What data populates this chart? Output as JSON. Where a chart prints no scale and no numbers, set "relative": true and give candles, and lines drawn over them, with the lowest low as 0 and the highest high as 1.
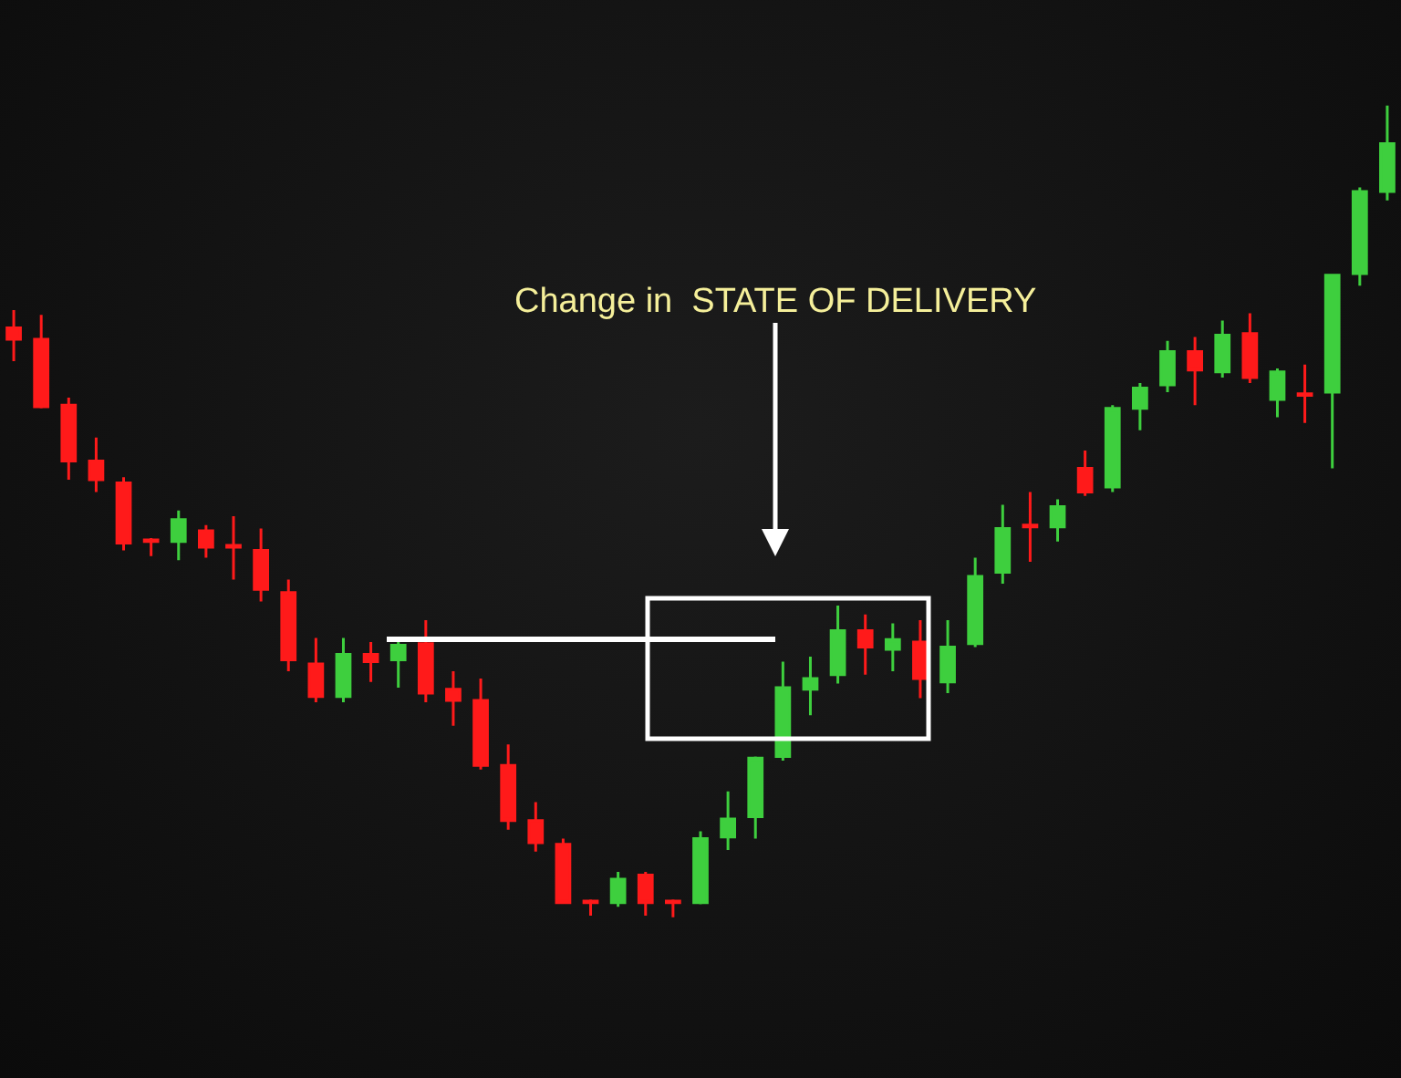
{
  "chart_data": {
    "type": "candlestick",
    "relative": true,
    "categories": [
      null,
      null,
      null,
      null,
      null,
      null,
      null,
      null,
      null,
      null,
      null,
      null,
      null,
      null,
      null,
      null,
      null,
      null,
      null,
      null,
      null,
      null,
      null,
      null,
      null,
      null,
      null,
      null,
      null,
      null,
      null,
      null,
      null,
      null,
      null,
      null,
      null,
      null,
      null,
      null,
      null,
      null,
      null,
      null,
      null,
      null,
      null,
      null,
      null,
      null,
      null
    ],
    "ohlc": [
      [
        0.726,
        0.748,
        0.685,
        0.712
      ],
      [
        0.712,
        0.742,
        0.627,
        0.629
      ],
      [
        0.631,
        0.64,
        0.539,
        0.562
      ],
      [
        0.562,
        0.591,
        0.524,
        0.539
      ],
      [
        0.535,
        0.542,
        0.452,
        0.461
      ],
      [
        0.465,
        0.467,
        0.445,
        0.463
      ],
      [
        0.463,
        0.501,
        0.44,
        0.49
      ],
      [
        0.476,
        0.483,
        0.443,
        0.456
      ],
      [
        0.458,
        0.494,
        0.416,
        0.456
      ],
      [
        0.452,
        0.479,
        0.389,
        0.404
      ],
      [
        0.4,
        0.416,
        0.303,
        0.317
      ],
      [
        0.312,
        0.344,
        0.265,
        0.272
      ],
      [
        0.272,
        0.344,
        0.265,
        0.324
      ],
      [
        0.324,
        0.339,
        0.29,
        0.315
      ],
      [
        0.317,
        0.344,
        0.283,
        0.335
      ],
      [
        0.337,
        0.366,
        0.265,
        0.276
      ],
      [
        0.281,
        0.303,
        0.236,
        0.267
      ],
      [
        0.267,
        0.294,
        0.182,
        0.187
      ],
      [
        0.187,
        0.213,
        0.108,
        0.119
      ],
      [
        0.119,
        0.142,
        0.081,
        0.092
      ],
      [
        0.09,
        0.097,
        0.018,
        0.018
      ],
      [
        0.02,
        0.022,
        0.002,
        0.018
      ],
      [
        0.018,
        0.056,
        0.013,
        0.047
      ],
      [
        0.052,
        0.056,
        0.002,
        0.018
      ],
      [
        0.02,
        0.022,
        0,
        0.018
      ],
      [
        0.018,
        0.106,
        0.016,
        0.097
      ],
      [
        0.099,
        0.155,
        0.083,
        0.121
      ],
      [
        0.124,
        0.198,
        0.097,
        0.196
      ],
      [
        0.198,
        0.315,
        0.193,
        0.283
      ],
      [
        0.281,
        0.321,
        0.249,
        0.294
      ],
      [
        0.299,
        0.384,
        0.288,
        0.353
      ],
      [
        0.353,
        0.373,
        0.299,
        0.333
      ],
      [
        0.33,
        0.362,
        0.303,
        0.342
      ],
      [
        0.339,
        0.366,
        0.27,
        0.294
      ],
      [
        0.29,
        0.366,
        0.276,
        0.333
      ],
      [
        0.337,
        0.443,
        0.333,
        0.42
      ],
      [
        0.425,
        0.508,
        0.411,
        0.479
      ],
      [
        0.483,
        0.524,
        0.438,
        0.481
      ],
      [
        0.481,
        0.515,
        0.463,
        0.506
      ],
      [
        0.553,
        0.575,
        0.519,
        0.524
      ],
      [
        0.53,
        0.631,
        0.524,
        0.627
      ],
      [
        0.627,
        0.658,
        0.6,
        0.652
      ],
      [
        0.656,
        0.71,
        0.647,
        0.697
      ],
      [
        0.697,
        0.715,
        0.631,
        0.674
      ],
      [
        0.672,
        0.735,
        0.665,
        0.717
      ],
      [
        0.719,
        0.744,
        0.658,
        0.665
      ],
      [
        0.638,
        0.676,
        0.616,
        0.672
      ],
      [
        0.645,
        0.681,
        0.609,
        0.643
      ],
      [
        0.647,
        0.791,
        0.553,
        0.791
      ],
      [
        0.793,
        0.899,
        0.778,
        0.894
      ],
      [
        0.894,
        1,
        0.883,
        0.953
      ]
    ],
    "colors": [
      "#ff1a1a",
      "#ff1a1a",
      "#ff1a1a",
      "#ff1a1a",
      "#ff1a1a",
      "#ff1a1a",
      "#3ecf3e",
      "#ff1a1a",
      "#ff1a1a",
      "#ff1a1a",
      "#ff1a1a",
      "#ff1a1a",
      "#3ecf3e",
      "#ff1a1a",
      "#3ecf3e",
      "#ff1a1a",
      "#ff1a1a",
      "#ff1a1a",
      "#ff1a1a",
      "#ff1a1a",
      "#ff1a1a",
      "#ff1a1a",
      "#3ecf3e",
      "#ff1a1a",
      "#ff1a1a",
      "#3ecf3e",
      "#3ecf3e",
      "#3ecf3e",
      "#3ecf3e",
      "#3ecf3e",
      "#3ecf3e",
      "#ff1a1a",
      "#3ecf3e",
      "#ff1a1a",
      "#3ecf3e",
      "#3ecf3e",
      "#3ecf3e",
      "#ff1a1a",
      "#3ecf3e",
      "#ff1a1a",
      "#3ecf3e",
      "#3ecf3e",
      "#3ecf3e",
      "#ff1a1a",
      "#3ecf3e",
      "#ff1a1a",
      "#3ecf3e",
      "#ff1a1a",
      "#3ecf3e",
      "#3ecf3e",
      "#3ecf3e"
    ],
    "annotations": [
      "Change in  STATE OF DELIVERY"
    ]
  }
}
